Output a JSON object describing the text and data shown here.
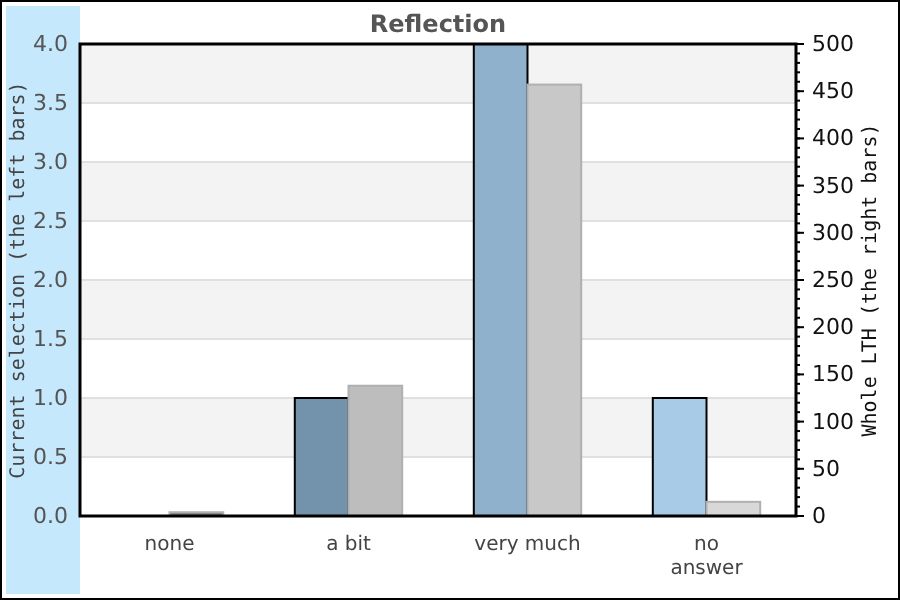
{
  "chart_data": {
    "type": "bar",
    "title": "Reflection",
    "ylabel": "Current selection (the left bars)",
    "y2label": "Whole LTH (the right bars)",
    "categories": [
      "none",
      "a bit",
      "very much",
      "no\nanswer"
    ],
    "series": [
      {
        "colors": [
          "#7393ad",
          "#7393ad",
          "#8fb1cc",
          "#a8cce8"
        ],
        "values": [
          0,
          1,
          4,
          1
        ]
      },
      {
        "colors": [
          "#808080",
          "#bdbdbd",
          "#c8c8c8",
          "#d8d8d8"
        ],
        "values": [
          4,
          138,
          457,
          15
        ],
        "axis": "y2"
      }
    ],
    "ylim": [
      0,
      4
    ],
    "yticks": [
      {
        "value": 0,
        "label": "0.0"
      },
      {
        "value": 0.5,
        "label": "0.5"
      },
      {
        "value": 1,
        "label": "1.0"
      },
      {
        "value": 1.5,
        "label": "1.5"
      },
      {
        "value": 2,
        "label": "2.0"
      },
      {
        "value": 2.5,
        "label": "2.5"
      },
      {
        "value": 3,
        "label": "3.0"
      },
      {
        "value": 3.5,
        "label": "3.5"
      },
      {
        "value": 4,
        "label": "4.0"
      }
    ],
    "y2lim": [
      0,
      500
    ],
    "y2ticks": [
      0,
      50,
      100,
      150,
      200,
      250,
      300,
      350,
      400,
      450,
      500
    ],
    "grid": "y"
  }
}
